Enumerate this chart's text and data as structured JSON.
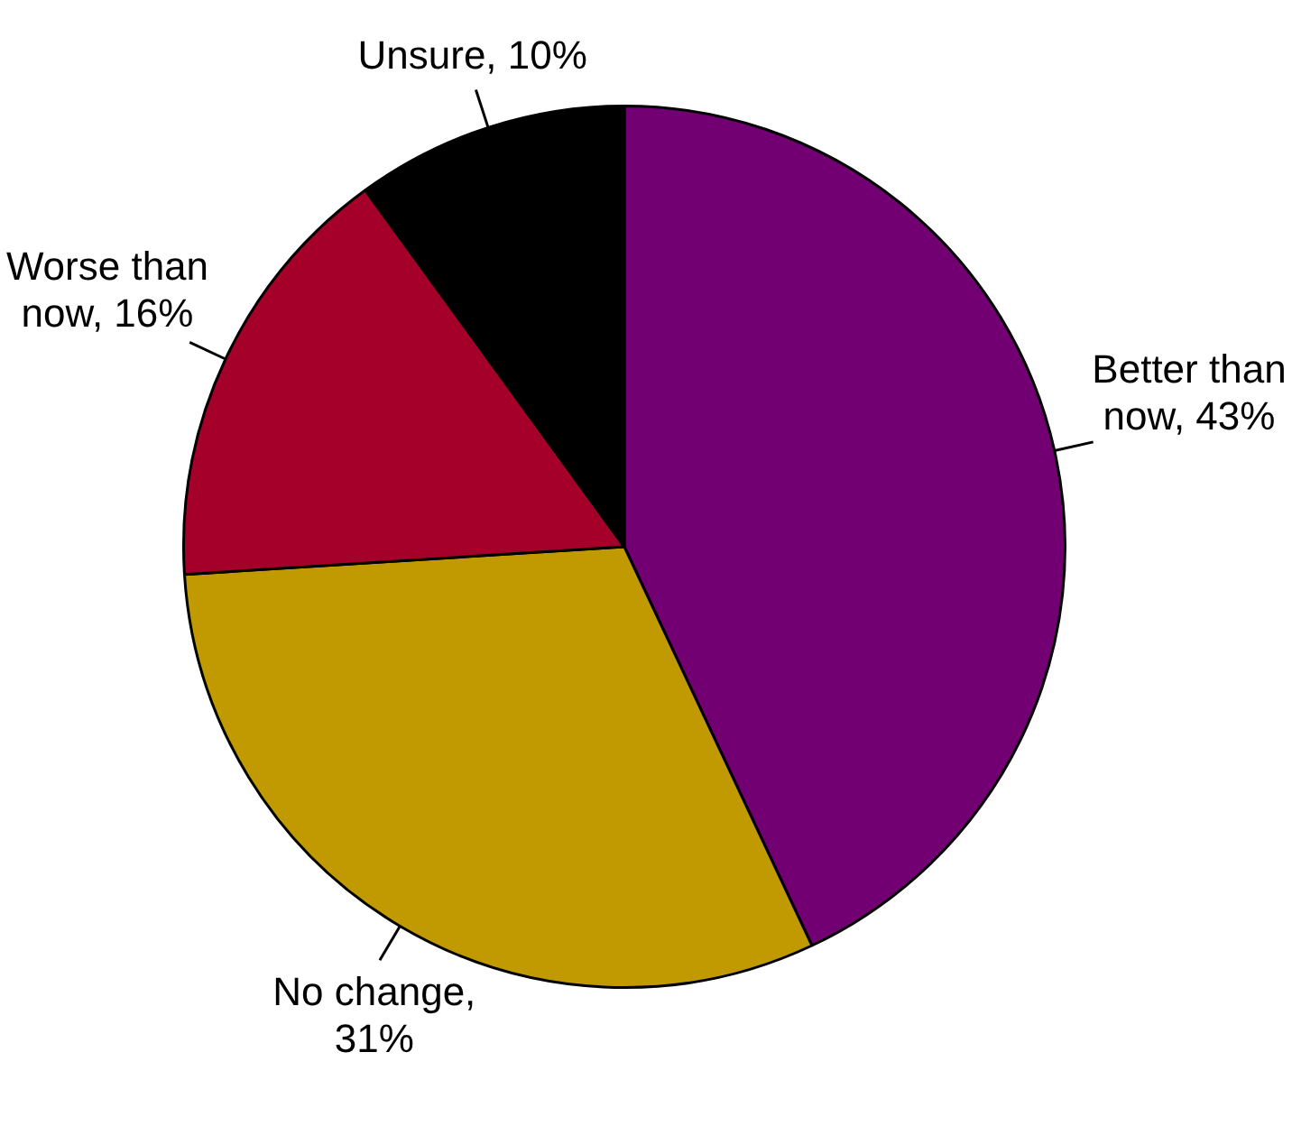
{
  "chart_data": {
    "type": "pie",
    "categories": [
      "Better than now, 43%",
      "No change, 31%",
      "Worse than now, 16%",
      "Unsure, 10%"
    ],
    "values": [
      43,
      31,
      16,
      10
    ],
    "colors": [
      "#720072",
      "#c09a00",
      "#a4002a",
      "#000000"
    ]
  }
}
